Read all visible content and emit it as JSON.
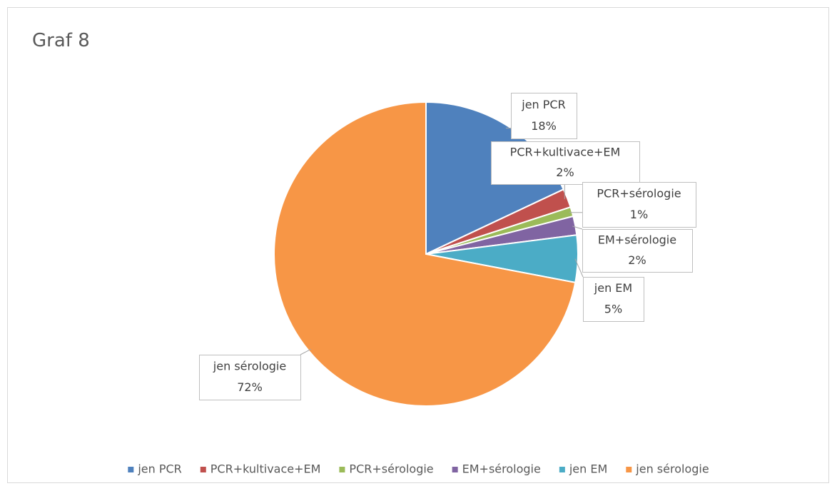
{
  "chart_data": {
    "type": "pie",
    "title": "Graf 8",
    "categories": [
      "jen PCR",
      "PCR+kultivace+EM",
      "PCR+sérologie",
      "EM+sérologie",
      "jen EM",
      "jen sérologie"
    ],
    "values": [
      18,
      2,
      1,
      2,
      5,
      72
    ],
    "value_labels": [
      "18%",
      "2%",
      "1%",
      "2%",
      "5%",
      "72%"
    ],
    "colors": [
      "#4f81bd",
      "#c0504d",
      "#9bbb59",
      "#8064a2",
      "#4bacc6",
      "#f79646"
    ],
    "legend": "bottom"
  }
}
